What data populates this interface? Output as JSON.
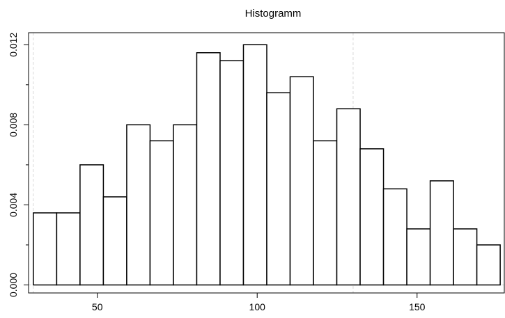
{
  "chart_data": {
    "type": "bar",
    "title": "Histogramm",
    "xlabel": "",
    "ylabel": "",
    "bin_width": 7.3,
    "bins": [
      {
        "x0": 30.0,
        "x1": 37.3,
        "density": 0.0036
      },
      {
        "x0": 37.3,
        "x1": 44.6,
        "density": 0.0036
      },
      {
        "x0": 44.6,
        "x1": 51.9,
        "density": 0.006
      },
      {
        "x0": 51.9,
        "x1": 59.2,
        "density": 0.0044
      },
      {
        "x0": 59.2,
        "x1": 66.5,
        "density": 0.008
      },
      {
        "x0": 66.5,
        "x1": 73.8,
        "density": 0.0072
      },
      {
        "x0": 73.8,
        "x1": 81.1,
        "density": 0.008
      },
      {
        "x0": 81.1,
        "x1": 88.4,
        "density": 0.0116
      },
      {
        "x0": 88.4,
        "x1": 95.7,
        "density": 0.0112
      },
      {
        "x0": 95.7,
        "x1": 103.0,
        "density": 0.012
      },
      {
        "x0": 103.0,
        "x1": 110.3,
        "density": 0.0096
      },
      {
        "x0": 110.3,
        "x1": 117.6,
        "density": 0.0104
      },
      {
        "x0": 117.6,
        "x1": 124.9,
        "density": 0.0072
      },
      {
        "x0": 124.9,
        "x1": 132.2,
        "density": 0.0088
      },
      {
        "x0": 132.2,
        "x1": 139.5,
        "density": 0.0068
      },
      {
        "x0": 139.5,
        "x1": 146.8,
        "density": 0.0048
      },
      {
        "x0": 146.8,
        "x1": 154.1,
        "density": 0.0028
      },
      {
        "x0": 154.1,
        "x1": 161.4,
        "density": 0.0052
      },
      {
        "x0": 161.4,
        "x1": 168.7,
        "density": 0.0028
      },
      {
        "x0": 168.7,
        "x1": 176.0,
        "density": 0.002
      }
    ],
    "xlim": [
      28.5,
      177.5
    ],
    "ylim": [
      -0.0004,
      0.0126
    ],
    "x_ticks": [
      {
        "value": 50,
        "label": "50"
      },
      {
        "value": 100,
        "label": "100"
      },
      {
        "value": 150,
        "label": "150"
      }
    ],
    "y_ticks": [
      {
        "value": 0.0,
        "label": "0.000"
      },
      {
        "value": 0.004,
        "label": "0.004"
      },
      {
        "value": 0.008,
        "label": "0.008"
      },
      {
        "value": 0.012,
        "label": "0.012"
      }
    ],
    "y_minor_ticks": [
      0.002,
      0.006,
      0.01
    ],
    "grid": {
      "vertical_dashed_at": [
        30,
        130
      ],
      "horizontal_dashed_at": [
        0.0
      ],
      "color": "#d9d9d9"
    },
    "bar_fill": "#ffffff",
    "bar_stroke": "#000000"
  }
}
